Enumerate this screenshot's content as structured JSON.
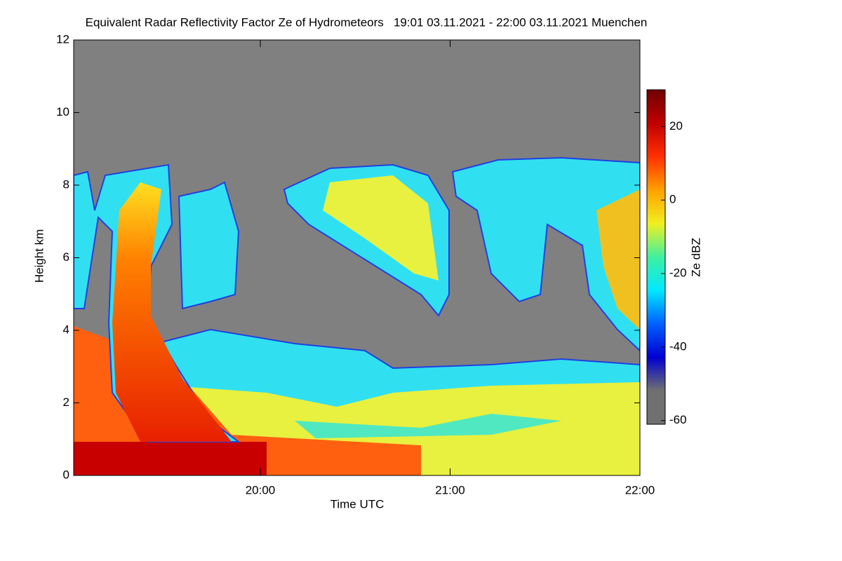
{
  "chart_data": {
    "type": "heatmap",
    "title": "Equivalent Radar Reflectivity Factor Ze of Hydrometeors   19:01 03.11.2021 - 22:00 03.11.2021 Muenchen",
    "x_label": "Time UTC",
    "y_label": "Height km",
    "colorbar_label": "Ze dBZ",
    "xlim": [
      19.0167,
      22.0
    ],
    "xticks": [
      {
        "value": 20,
        "label": "20:00"
      },
      {
        "value": 21,
        "label": "21:00"
      },
      {
        "value": 22,
        "label": "22:00"
      }
    ],
    "ylim": [
      0,
      12
    ],
    "yticks": [
      0,
      2,
      4,
      6,
      8,
      10,
      12
    ],
    "clim": [
      -61,
      30
    ],
    "cticks": [
      -60,
      -40,
      -20,
      0,
      20
    ],
    "colormap": [
      "#707070",
      "#707070",
      "#0000d0",
      "#0060ff",
      "#00e8ff",
      "#40f0a0",
      "#f0f020",
      "#ffa000",
      "#ff3000",
      "#c00000",
      "#700000"
    ],
    "background_color": "#808080"
  }
}
